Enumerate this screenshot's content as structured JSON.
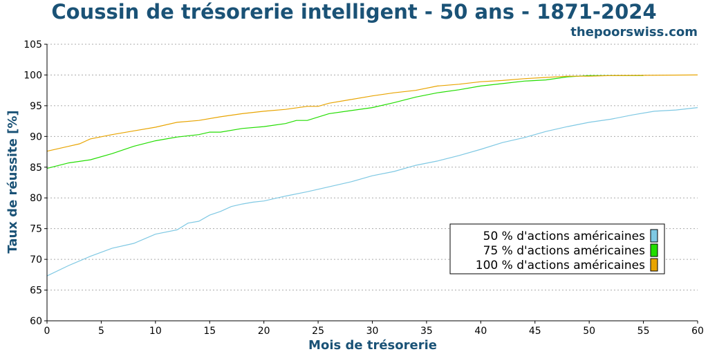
{
  "colors": {
    "title": "#1a5276",
    "series_50": "#7ec8e3",
    "series_75": "#22dd00",
    "series_100": "#e8a400",
    "grid": "#aaaaaa"
  },
  "chart_data": {
    "type": "line",
    "title": "Coussin de trésorerie intelligent - 50 ans - 1871-2024",
    "subtitle": "thepoorswiss.com",
    "xlabel": "Mois de trésorerie",
    "ylabel": "Taux de réussite [%]",
    "xlim": [
      0,
      60
    ],
    "ylim": [
      60,
      105
    ],
    "xticks": [
      0,
      5,
      10,
      15,
      20,
      25,
      30,
      35,
      40,
      45,
      50,
      55,
      60
    ],
    "yticks": [
      60,
      65,
      70,
      75,
      80,
      85,
      90,
      95,
      100,
      105
    ],
    "grid": "horizontal dotted",
    "legend_position": "lower-right",
    "series": [
      {
        "name": "50 % d'actions américaines",
        "color": "#7ec8e3",
        "x": [
          0,
          2,
          4,
          6,
          8,
          10,
          12,
          13,
          14,
          15,
          16,
          17,
          18,
          19,
          20,
          22,
          24,
          26,
          28,
          30,
          32,
          34,
          36,
          38,
          40,
          42,
          44,
          46,
          48,
          50,
          52,
          54,
          56,
          58,
          60
        ],
        "y": [
          67.3,
          69.0,
          70.5,
          71.8,
          72.6,
          74.1,
          74.8,
          75.9,
          76.2,
          77.2,
          77.8,
          78.6,
          79.0,
          79.3,
          79.5,
          80.3,
          81.0,
          81.8,
          82.6,
          83.6,
          84.3,
          85.3,
          86.0,
          86.9,
          87.9,
          89.0,
          89.8,
          90.8,
          91.6,
          92.3,
          92.8,
          93.5,
          94.1,
          94.3,
          94.7
        ]
      },
      {
        "name": "75 % d'actions américaines",
        "color": "#22dd00",
        "x": [
          0,
          2,
          4,
          6,
          8,
          10,
          12,
          14,
          15,
          16,
          18,
          20,
          22,
          23,
          24,
          26,
          28,
          30,
          32,
          34,
          36,
          38,
          40,
          42,
          44,
          46,
          48,
          50,
          52,
          54,
          55
        ],
        "y": [
          84.8,
          85.7,
          86.2,
          87.2,
          88.4,
          89.3,
          89.9,
          90.3,
          90.7,
          90.7,
          91.3,
          91.6,
          92.1,
          92.6,
          92.6,
          93.7,
          94.2,
          94.7,
          95.5,
          96.4,
          97.1,
          97.6,
          98.2,
          98.6,
          99.0,
          99.2,
          99.7,
          99.9,
          99.9,
          99.9,
          99.9
        ]
      },
      {
        "name": "100 % d'actions américaines",
        "color": "#e8a400",
        "x": [
          0,
          2,
          3,
          4,
          6,
          8,
          10,
          12,
          14,
          16,
          18,
          20,
          22,
          24,
          25,
          26,
          28,
          30,
          32,
          34,
          36,
          38,
          40,
          42,
          44,
          46,
          48,
          50,
          52,
          60
        ],
        "y": [
          87.6,
          88.4,
          88.8,
          89.6,
          90.3,
          90.9,
          91.5,
          92.3,
          92.6,
          93.2,
          93.7,
          94.1,
          94.4,
          94.9,
          94.9,
          95.4,
          96.0,
          96.6,
          97.1,
          97.5,
          98.2,
          98.5,
          98.9,
          99.1,
          99.4,
          99.6,
          99.8,
          99.8,
          99.9,
          100.0
        ]
      }
    ]
  }
}
